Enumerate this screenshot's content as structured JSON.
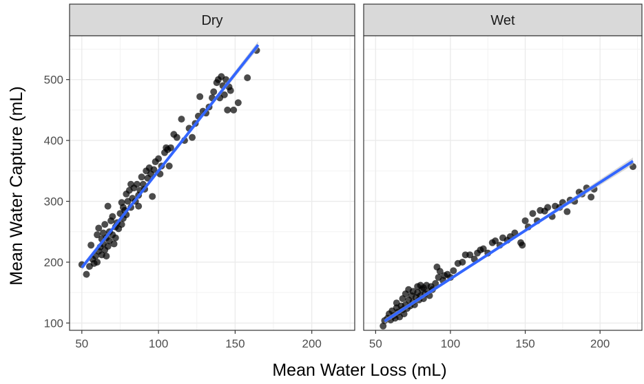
{
  "chart_data": {
    "type": "scatter",
    "xlabel": "Mean Water Loss (mL)",
    "ylabel": "Mean Water Capture (mL)",
    "xlim": [
      42,
      228
    ],
    "ylim": [
      88,
      572
    ],
    "x_ticks": [
      50,
      100,
      150,
      200
    ],
    "y_ticks": [
      100,
      200,
      300,
      400,
      500
    ],
    "x_tick_labels": [
      "50",
      "100",
      "150",
      "200"
    ],
    "y_tick_labels": [
      "100",
      "200",
      "300",
      "400",
      "500"
    ],
    "grid": true,
    "point_color": "#000000",
    "fit_line_color": "#3366FF",
    "confidence_band_color": "#BEBEBE",
    "panel_strip_color": "#D9D9D9",
    "panels": [
      {
        "name": "Dry",
        "fit": {
          "x": [
            50,
            165
          ],
          "y": [
            191,
            557
          ]
        },
        "points": [
          {
            "x": 50,
            "y": 196
          },
          {
            "x": 53,
            "y": 180
          },
          {
            "x": 55,
            "y": 193
          },
          {
            "x": 56,
            "y": 228
          },
          {
            "x": 57,
            "y": 205
          },
          {
            "x": 58,
            "y": 198
          },
          {
            "x": 59,
            "y": 210
          },
          {
            "x": 60,
            "y": 200
          },
          {
            "x": 60,
            "y": 245
          },
          {
            "x": 61,
            "y": 218
          },
          {
            "x": 61,
            "y": 256
          },
          {
            "x": 62,
            "y": 225
          },
          {
            "x": 63,
            "y": 212
          },
          {
            "x": 63,
            "y": 238
          },
          {
            "x": 64,
            "y": 230
          },
          {
            "x": 64,
            "y": 248
          },
          {
            "x": 65,
            "y": 220
          },
          {
            "x": 65,
            "y": 262
          },
          {
            "x": 66,
            "y": 210
          },
          {
            "x": 66,
            "y": 240
          },
          {
            "x": 67,
            "y": 226
          },
          {
            "x": 67,
            "y": 292
          },
          {
            "x": 68,
            "y": 250
          },
          {
            "x": 68,
            "y": 235
          },
          {
            "x": 69,
            "y": 268
          },
          {
            "x": 70,
            "y": 245
          },
          {
            "x": 70,
            "y": 275
          },
          {
            "x": 71,
            "y": 230
          },
          {
            "x": 72,
            "y": 258
          },
          {
            "x": 72,
            "y": 240
          },
          {
            "x": 73,
            "y": 265
          },
          {
            "x": 74,
            "y": 255
          },
          {
            "x": 75,
            "y": 280
          },
          {
            "x": 76,
            "y": 262
          },
          {
            "x": 76,
            "y": 298
          },
          {
            "x": 77,
            "y": 272
          },
          {
            "x": 77,
            "y": 290
          },
          {
            "x": 78,
            "y": 285
          },
          {
            "x": 79,
            "y": 278
          },
          {
            "x": 79,
            "y": 312
          },
          {
            "x": 80,
            "y": 300
          },
          {
            "x": 81,
            "y": 318
          },
          {
            "x": 82,
            "y": 290
          },
          {
            "x": 82,
            "y": 328
          },
          {
            "x": 83,
            "y": 305
          },
          {
            "x": 84,
            "y": 322
          },
          {
            "x": 85,
            "y": 300
          },
          {
            "x": 86,
            "y": 328
          },
          {
            "x": 87,
            "y": 292
          },
          {
            "x": 87,
            "y": 310
          },
          {
            "x": 88,
            "y": 318
          },
          {
            "x": 89,
            "y": 340
          },
          {
            "x": 90,
            "y": 328
          },
          {
            "x": 91,
            "y": 320
          },
          {
            "x": 92,
            "y": 350
          },
          {
            "x": 93,
            "y": 338
          },
          {
            "x": 94,
            "y": 355
          },
          {
            "x": 95,
            "y": 345
          },
          {
            "x": 96,
            "y": 308
          },
          {
            "x": 97,
            "y": 352
          },
          {
            "x": 98,
            "y": 365
          },
          {
            "x": 100,
            "y": 370
          },
          {
            "x": 101,
            "y": 345
          },
          {
            "x": 102,
            "y": 358
          },
          {
            "x": 104,
            "y": 380
          },
          {
            "x": 105,
            "y": 388
          },
          {
            "x": 106,
            "y": 385
          },
          {
            "x": 107,
            "y": 358
          },
          {
            "x": 108,
            "y": 388
          },
          {
            "x": 110,
            "y": 410
          },
          {
            "x": 112,
            "y": 405
          },
          {
            "x": 115,
            "y": 435
          },
          {
            "x": 117,
            "y": 400
          },
          {
            "x": 120,
            "y": 420
          },
          {
            "x": 122,
            "y": 405
          },
          {
            "x": 124,
            "y": 428
          },
          {
            "x": 126,
            "y": 440
          },
          {
            "x": 127,
            "y": 472
          },
          {
            "x": 129,
            "y": 448
          },
          {
            "x": 131,
            "y": 445
          },
          {
            "x": 133,
            "y": 455
          },
          {
            "x": 135,
            "y": 470
          },
          {
            "x": 136,
            "y": 480
          },
          {
            "x": 138,
            "y": 495
          },
          {
            "x": 139,
            "y": 500
          },
          {
            "x": 140,
            "y": 470
          },
          {
            "x": 141,
            "y": 505
          },
          {
            "x": 142,
            "y": 490
          },
          {
            "x": 143,
            "y": 475
          },
          {
            "x": 144,
            "y": 500
          },
          {
            "x": 145,
            "y": 450
          },
          {
            "x": 146,
            "y": 488
          },
          {
            "x": 147,
            "y": 482
          },
          {
            "x": 149,
            "y": 450
          },
          {
            "x": 152,
            "y": 462
          },
          {
            "x": 158,
            "y": 503
          },
          {
            "x": 164,
            "y": 548
          }
        ]
      },
      {
        "name": "Wet",
        "fit": {
          "x": [
            56,
            222
          ],
          "y": [
            103,
            366
          ]
        },
        "points": [
          {
            "x": 55,
            "y": 95
          },
          {
            "x": 56,
            "y": 104
          },
          {
            "x": 58,
            "y": 108
          },
          {
            "x": 59,
            "y": 115
          },
          {
            "x": 60,
            "y": 105
          },
          {
            "x": 61,
            "y": 120
          },
          {
            "x": 62,
            "y": 112
          },
          {
            "x": 63,
            "y": 108
          },
          {
            "x": 64,
            "y": 125
          },
          {
            "x": 64,
            "y": 133
          },
          {
            "x": 65,
            "y": 118
          },
          {
            "x": 66,
            "y": 110
          },
          {
            "x": 67,
            "y": 128
          },
          {
            "x": 68,
            "y": 122
          },
          {
            "x": 68,
            "y": 140
          },
          {
            "x": 69,
            "y": 115
          },
          {
            "x": 70,
            "y": 130
          },
          {
            "x": 70,
            "y": 148
          },
          {
            "x": 71,
            "y": 124
          },
          {
            "x": 72,
            "y": 138
          },
          {
            "x": 72,
            "y": 155
          },
          {
            "x": 73,
            "y": 128
          },
          {
            "x": 74,
            "y": 145
          },
          {
            "x": 75,
            "y": 135
          },
          {
            "x": 75,
            "y": 152
          },
          {
            "x": 76,
            "y": 130
          },
          {
            "x": 77,
            "y": 142
          },
          {
            "x": 78,
            "y": 150
          },
          {
            "x": 78,
            "y": 160
          },
          {
            "x": 79,
            "y": 138
          },
          {
            "x": 80,
            "y": 145
          },
          {
            "x": 80,
            "y": 162
          },
          {
            "x": 81,
            "y": 155
          },
          {
            "x": 82,
            "y": 140
          },
          {
            "x": 82,
            "y": 158
          },
          {
            "x": 83,
            "y": 148
          },
          {
            "x": 84,
            "y": 162
          },
          {
            "x": 85,
            "y": 152
          },
          {
            "x": 86,
            "y": 145
          },
          {
            "x": 87,
            "y": 160
          },
          {
            "x": 88,
            "y": 155
          },
          {
            "x": 90,
            "y": 165
          },
          {
            "x": 91,
            "y": 192
          },
          {
            "x": 92,
            "y": 175
          },
          {
            "x": 93,
            "y": 185
          },
          {
            "x": 95,
            "y": 170
          },
          {
            "x": 96,
            "y": 178
          },
          {
            "x": 98,
            "y": 180
          },
          {
            "x": 100,
            "y": 175
          },
          {
            "x": 102,
            "y": 186
          },
          {
            "x": 105,
            "y": 198
          },
          {
            "x": 108,
            "y": 200
          },
          {
            "x": 110,
            "y": 212
          },
          {
            "x": 113,
            "y": 212
          },
          {
            "x": 116,
            "y": 205
          },
          {
            "x": 118,
            "y": 215
          },
          {
            "x": 120,
            "y": 220
          },
          {
            "x": 122,
            "y": 222
          },
          {
            "x": 125,
            "y": 215
          },
          {
            "x": 128,
            "y": 232
          },
          {
            "x": 130,
            "y": 235
          },
          {
            "x": 133,
            "y": 228
          },
          {
            "x": 135,
            "y": 240
          },
          {
            "x": 138,
            "y": 236
          },
          {
            "x": 140,
            "y": 242
          },
          {
            "x": 143,
            "y": 248
          },
          {
            "x": 147,
            "y": 232
          },
          {
            "x": 148,
            "y": 228
          },
          {
            "x": 150,
            "y": 268
          },
          {
            "x": 152,
            "y": 258
          },
          {
            "x": 155,
            "y": 280
          },
          {
            "x": 158,
            "y": 268
          },
          {
            "x": 160,
            "y": 285
          },
          {
            "x": 163,
            "y": 284
          },
          {
            "x": 165,
            "y": 290
          },
          {
            "x": 168,
            "y": 275
          },
          {
            "x": 170,
            "y": 292
          },
          {
            "x": 173,
            "y": 290
          },
          {
            "x": 175,
            "y": 298
          },
          {
            "x": 178,
            "y": 283
          },
          {
            "x": 180,
            "y": 302
          },
          {
            "x": 183,
            "y": 300
          },
          {
            "x": 186,
            "y": 315
          },
          {
            "x": 188,
            "y": 312
          },
          {
            "x": 191,
            "y": 322
          },
          {
            "x": 194,
            "y": 307
          },
          {
            "x": 196,
            "y": 320
          },
          {
            "x": 222,
            "y": 357
          }
        ]
      }
    ]
  }
}
